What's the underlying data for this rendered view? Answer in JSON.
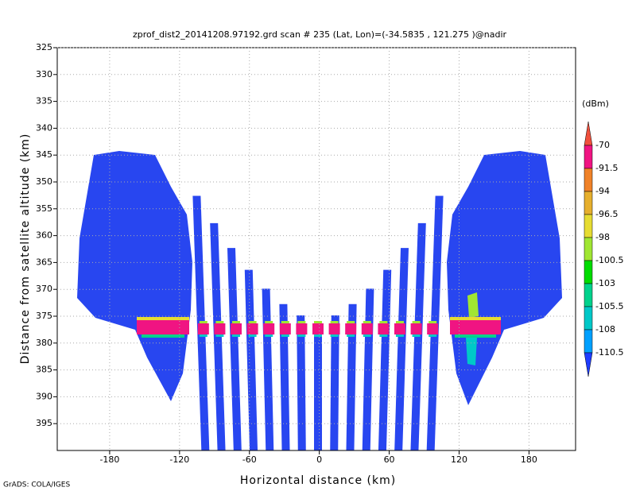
{
  "chart_data": {
    "type": "heatmap",
    "title": "zprof_dist2_20141208.97192.grd  scan # 235  (Lat, Lon)=(-34.5835 , 121.275 )@nadir",
    "xlabel": "Horizontal distance (km)",
    "ylabel": "Distance from satellite altitude (km)",
    "credit": "GrADS: COLA/IGES",
    "xlim": [
      -225,
      220
    ],
    "xticks": [
      -180,
      -120,
      -60,
      0,
      60,
      120,
      180
    ],
    "ylim": [
      400,
      325
    ],
    "yticks": [
      325,
      330,
      335,
      340,
      345,
      350,
      355,
      360,
      365,
      370,
      375,
      380,
      385,
      390,
      395
    ],
    "grid": true,
    "colorbar": {
      "label": "(dBm)",
      "levels": [
        -70,
        -91.5,
        -94,
        -96.5,
        -98,
        -100.5,
        -103,
        -105.5,
        -108,
        -110.5
      ],
      "colors": [
        "#f0503c",
        "#f01482",
        "#f08228",
        "#e6af2d",
        "#e6dc32",
        "#a0e632",
        "#00dc00",
        "#00d28c",
        "#00c8c8",
        "#00a0ff",
        "#1e3cff"
      ]
    }
  }
}
